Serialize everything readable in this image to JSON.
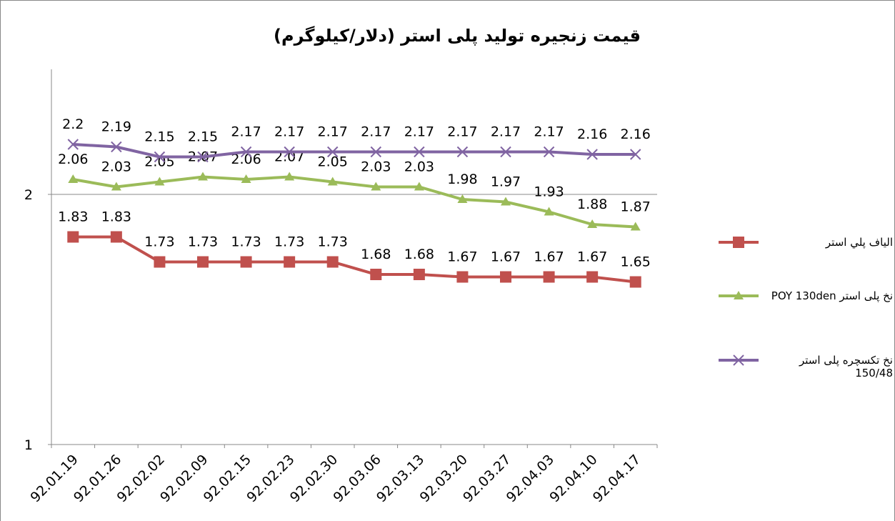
{
  "chart_data": {
    "type": "line",
    "title": "قیمت زنجیره تولید پلی استر (دلار/کیلوگرم)",
    "categories": [
      "92.01.19",
      "92.01.26",
      "92.02.02",
      "92.02.09",
      "92.02.15",
      "92.02.23",
      "92.02.30",
      "92.03.06",
      "92.03.13",
      "92.03.20",
      "92.03.27",
      "92.04.03",
      "92.04.10",
      "92.04.17"
    ],
    "series": [
      {
        "name": "الیاف پلي استر",
        "color": "#c0504d",
        "marker": "square",
        "values": [
          1.83,
          1.83,
          1.73,
          1.73,
          1.73,
          1.73,
          1.73,
          1.68,
          1.68,
          1.67,
          1.67,
          1.67,
          1.67,
          1.65
        ]
      },
      {
        "name": "نخ پلی استر POY 130den",
        "color": "#9bbb59",
        "marker": "triangle",
        "values": [
          2.06,
          2.03,
          2.05,
          2.07,
          2.06,
          2.07,
          2.05,
          2.03,
          2.03,
          1.98,
          1.97,
          1.93,
          1.88,
          1.87
        ]
      },
      {
        "name": "نخ تکسچره پلی استر 150/48",
        "color": "#8064a2",
        "marker": "x",
        "values": [
          2.2,
          2.19,
          2.15,
          2.15,
          2.17,
          2.17,
          2.17,
          2.17,
          2.17,
          2.17,
          2.17,
          2.17,
          2.16,
          2.16
        ]
      }
    ],
    "ylim": [
      1,
      2.5
    ],
    "yticks": [
      1,
      2
    ],
    "grid": true,
    "legend": "right"
  }
}
